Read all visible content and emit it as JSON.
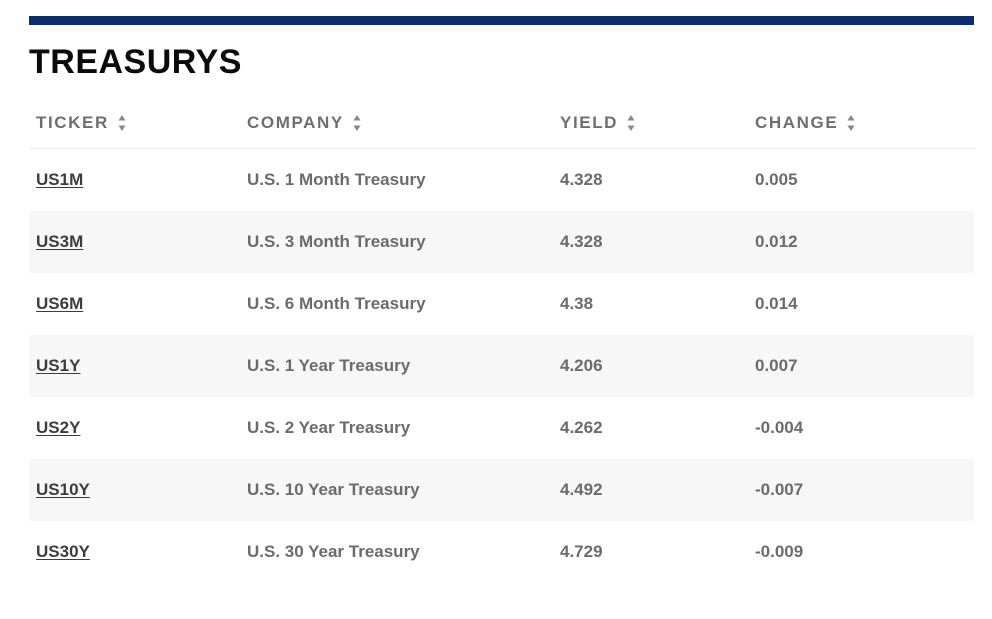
{
  "section": {
    "title": "TREASURYS"
  },
  "table": {
    "columns": [
      {
        "label": "TICKER",
        "icon": "sort-icon"
      },
      {
        "label": "COMPANY",
        "icon": "sort-icon"
      },
      {
        "label": "YIELD",
        "icon": "sort-icon"
      },
      {
        "label": "CHANGE",
        "icon": "sort-icon"
      }
    ],
    "rows": [
      {
        "ticker": "US1M",
        "company": "U.S. 1 Month Treasury",
        "yield": "4.328",
        "change": "0.005"
      },
      {
        "ticker": "US3M",
        "company": "U.S. 3 Month Treasury",
        "yield": "4.328",
        "change": "0.012"
      },
      {
        "ticker": "US6M",
        "company": "U.S. 6 Month Treasury",
        "yield": "4.38",
        "change": "0.014"
      },
      {
        "ticker": "US1Y",
        "company": "U.S. 1 Year Treasury",
        "yield": "4.206",
        "change": "0.007"
      },
      {
        "ticker": "US2Y",
        "company": "U.S. 2 Year Treasury",
        "yield": "4.262",
        "change": "-0.004"
      },
      {
        "ticker": "US10Y",
        "company": "U.S. 10 Year Treasury",
        "yield": "4.492",
        "change": "-0.007"
      },
      {
        "ticker": "US30Y",
        "company": "U.S. 30 Year Treasury",
        "yield": "4.729",
        "change": "-0.009"
      }
    ]
  },
  "colors": {
    "accent_rule": "#0a2d6e",
    "title": "#0a0a0a",
    "header_text": "#6e6e6e",
    "cell_text": "#6b6b6b",
    "link_text": "#3d3d3d",
    "stripe": "#f7f7f7"
  }
}
